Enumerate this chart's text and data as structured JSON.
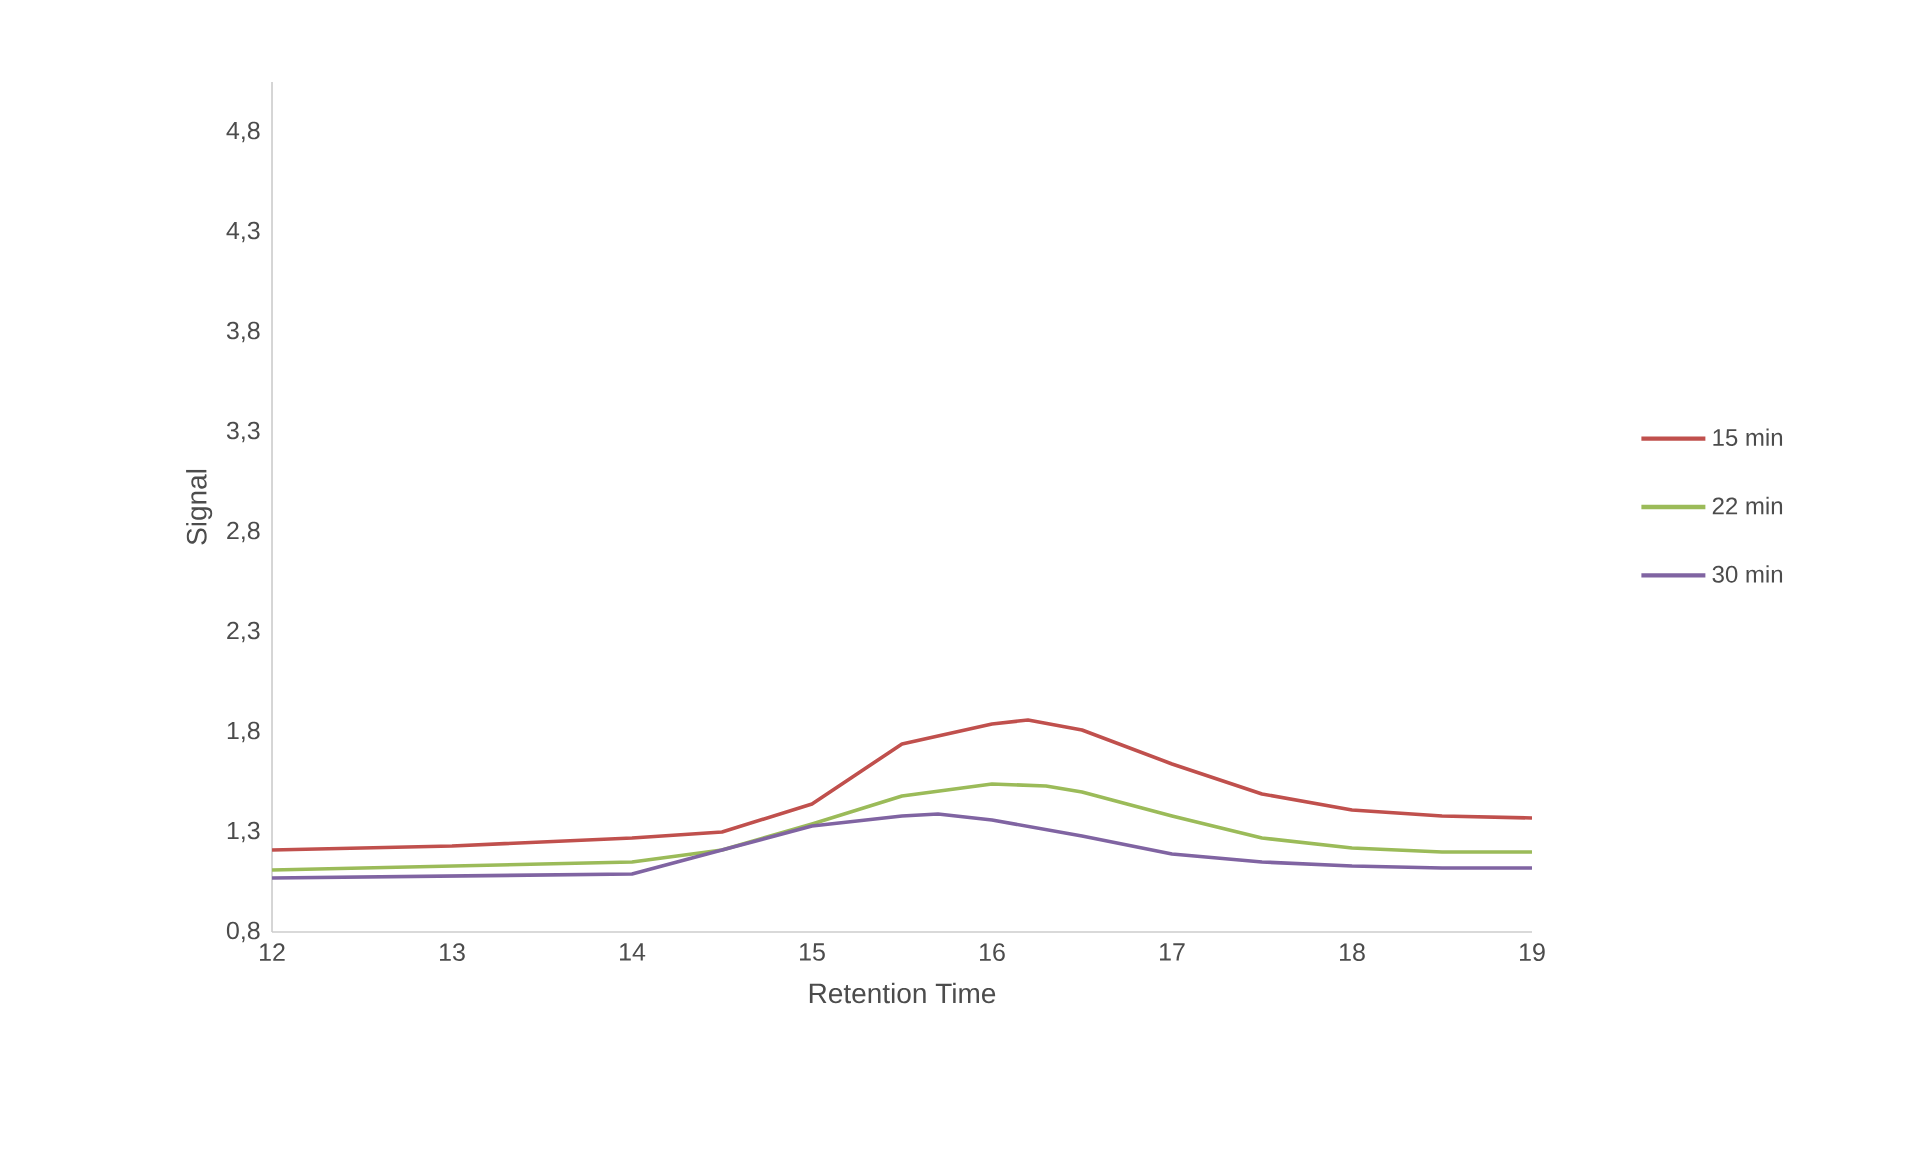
{
  "chart_data": {
    "type": "line",
    "xlabel": "Retention Time",
    "ylabel": "Signal",
    "xlim": [
      12,
      19
    ],
    "xticks": [
      12,
      13,
      14,
      15,
      16,
      17,
      18,
      19
    ],
    "ylim": [
      0.8,
      5.05
    ],
    "yticks": [
      {
        "value": 0.8,
        "label": "0,8"
      },
      {
        "value": 1.3,
        "label": "1,3"
      },
      {
        "value": 1.8,
        "label": "1,8"
      },
      {
        "value": 2.3,
        "label": "2,3"
      },
      {
        "value": 2.8,
        "label": "2,8"
      },
      {
        "value": 3.3,
        "label": "3,3"
      },
      {
        "value": 3.8,
        "label": "3,8"
      },
      {
        "value": 4.3,
        "label": "4,3"
      },
      {
        "value": 4.8,
        "label": "4,8"
      }
    ],
    "grid": false,
    "legend": "right",
    "marker": "none",
    "line_style": "solid",
    "series": [
      {
        "name": "15 min",
        "color": "#c0504d",
        "x": [
          12,
          13,
          14,
          14.5,
          15,
          15.5,
          16,
          16.2,
          16.5,
          17,
          17.5,
          18,
          18.5,
          19
        ],
        "values": [
          1.21,
          1.23,
          1.27,
          1.3,
          1.44,
          1.74,
          1.84,
          1.86,
          1.81,
          1.64,
          1.49,
          1.41,
          1.38,
          1.37
        ]
      },
      {
        "name": "22 min",
        "color": "#9bbb59",
        "x": [
          12,
          13,
          14,
          14.5,
          15,
          15.5,
          16,
          16.3,
          16.5,
          17,
          17.5,
          18,
          18.5,
          19
        ],
        "values": [
          1.11,
          1.13,
          1.15,
          1.21,
          1.34,
          1.48,
          1.54,
          1.53,
          1.5,
          1.38,
          1.27,
          1.22,
          1.2,
          1.2
        ]
      },
      {
        "name": "30 min",
        "color": "#8064a2",
        "x": [
          12,
          13,
          14,
          14.5,
          15,
          15.5,
          15.7,
          16,
          16.5,
          17,
          17.5,
          18,
          18.5,
          19
        ],
        "values": [
          1.07,
          1.08,
          1.09,
          1.21,
          1.33,
          1.38,
          1.39,
          1.36,
          1.28,
          1.19,
          1.15,
          1.13,
          1.12,
          1.12
        ]
      }
    ]
  }
}
